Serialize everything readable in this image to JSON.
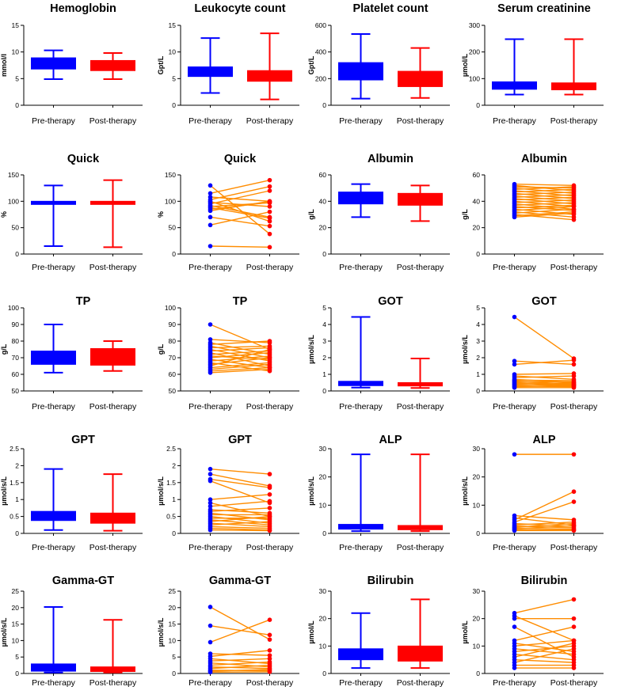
{
  "colors": {
    "pre": "#0000ff",
    "post": "#ff0000",
    "line": "#ff8c00",
    "axis": "#000000"
  },
  "chart_data": [
    {
      "type": "box",
      "title": "Hemoglobin",
      "ylabel": "mmol/l",
      "ylim": [
        0,
        15
      ],
      "yticks": [
        0,
        5,
        10,
        15
      ],
      "categories": [
        "Pre-therapy",
        "Post-therapy"
      ],
      "boxes": [
        {
          "min": 4.9,
          "q1": 6.8,
          "median": 7.8,
          "q3": 8.9,
          "max": 10.3
        },
        {
          "min": 4.9,
          "q1": 6.5,
          "median": 7.5,
          "q3": 8.4,
          "max": 9.8
        }
      ]
    },
    {
      "type": "box",
      "title": "Leukocyte count",
      "ylabel": "Gpt/L",
      "ylim": [
        0,
        15
      ],
      "yticks": [
        0,
        5,
        10,
        15
      ],
      "categories": [
        "Pre-therapy",
        "Post-therapy"
      ],
      "boxes": [
        {
          "min": 2.3,
          "q1": 5.4,
          "median": 6.3,
          "q3": 7.2,
          "max": 12.6
        },
        {
          "min": 1.1,
          "q1": 4.5,
          "median": 5.5,
          "q3": 6.5,
          "max": 13.5
        }
      ]
    },
    {
      "type": "box",
      "title": "Platelet count",
      "ylabel": "Gpt/L",
      "ylim": [
        0,
        600
      ],
      "yticks": [
        0,
        200,
        400,
        600
      ],
      "categories": [
        "Pre-therapy",
        "Post-therapy"
      ],
      "boxes": [
        {
          "min": 50,
          "q1": 190,
          "median": 245,
          "q3": 320,
          "max": 535
        },
        {
          "min": 55,
          "q1": 140,
          "median": 195,
          "q3": 255,
          "max": 430
        }
      ]
    },
    {
      "type": "box",
      "title": "Serum creatinine",
      "ylabel": "µmol/L",
      "ylim": [
        0,
        300
      ],
      "yticks": [
        0,
        100,
        200,
        300
      ],
      "categories": [
        "Pre-therapy",
        "Post-therapy"
      ],
      "boxes": [
        {
          "min": 40,
          "q1": 60,
          "median": 70,
          "q3": 88,
          "max": 248
        },
        {
          "min": 40,
          "q1": 58,
          "median": 68,
          "q3": 84,
          "max": 248
        }
      ]
    },
    {
      "type": "box",
      "title": "Quick",
      "ylabel": "%",
      "ylim": [
        0,
        150
      ],
      "yticks": [
        0,
        50,
        100,
        150
      ],
      "categories": [
        "Pre-therapy",
        "Post-therapy"
      ],
      "boxes": [
        {
          "min": 15,
          "q1": 94,
          "median": 97,
          "q3": 100,
          "max": 130
        },
        {
          "min": 13,
          "q1": 94,
          "median": 97,
          "q3": 100,
          "max": 140
        }
      ]
    },
    {
      "type": "paired",
      "title": "Quick",
      "ylabel": "%",
      "ylim": [
        0,
        150
      ],
      "yticks": [
        0,
        50,
        100,
        150
      ],
      "categories": [
        "Pre-therapy",
        "Post-therapy"
      ],
      "pairs": [
        [
          130,
          38
        ],
        [
          115,
          140
        ],
        [
          108,
          100
        ],
        [
          103,
          128
        ],
        [
          100,
          62
        ],
        [
          98,
          90
        ],
        [
          95,
          120
        ],
        [
          92,
          70
        ],
        [
          90,
          97
        ],
        [
          88,
          68
        ],
        [
          85,
          98
        ],
        [
          82,
          100
        ],
        [
          70,
          53
        ],
        [
          55,
          80
        ],
        [
          15,
          13
        ]
      ]
    },
    {
      "type": "box",
      "title": "Albumin",
      "ylabel": "g/L",
      "ylim": [
        0,
        60
      ],
      "yticks": [
        0,
        20,
        40,
        60
      ],
      "categories": [
        "Pre-therapy",
        "Post-therapy"
      ],
      "boxes": [
        {
          "min": 28,
          "q1": 38,
          "median": 43,
          "q3": 47,
          "max": 53
        },
        {
          "min": 25,
          "q1": 37,
          "median": 41,
          "q3": 46,
          "max": 52
        }
      ]
    },
    {
      "type": "paired",
      "title": "Albumin",
      "ylabel": "g/L",
      "ylim": [
        0,
        60
      ],
      "yticks": [
        0,
        20,
        40,
        60
      ],
      "categories": [
        "Pre-therapy",
        "Post-therapy"
      ],
      "pairs": [
        [
          53,
          52
        ],
        [
          52,
          48
        ],
        [
          51,
          50
        ],
        [
          50,
          46
        ],
        [
          49,
          51
        ],
        [
          48,
          44
        ],
        [
          47,
          49
        ],
        [
          46,
          42
        ],
        [
          45,
          47
        ],
        [
          44,
          40
        ],
        [
          43,
          45
        ],
        [
          42,
          38
        ],
        [
          41,
          43
        ],
        [
          40,
          36
        ],
        [
          39,
          41
        ],
        [
          38,
          34
        ],
        [
          37,
          39
        ],
        [
          36,
          33
        ],
        [
          35,
          37
        ],
        [
          34,
          30
        ],
        [
          33,
          36
        ],
        [
          32,
          28
        ],
        [
          31,
          34
        ],
        [
          30,
          26
        ],
        [
          29,
          32
        ],
        [
          28,
          31
        ]
      ]
    },
    {
      "type": "box",
      "title": "TP",
      "ylabel": "g/L",
      "ylim": [
        50,
        100
      ],
      "yticks": [
        50,
        60,
        70,
        80,
        90,
        100
      ],
      "categories": [
        "Pre-therapy",
        "Post-therapy"
      ],
      "boxes": [
        {
          "min": 61,
          "q1": 66,
          "median": 70,
          "q3": 74,
          "max": 90
        },
        {
          "min": 62,
          "q1": 65.5,
          "median": 70,
          "q3": 75.5,
          "max": 80
        }
      ]
    },
    {
      "type": "paired",
      "title": "TP",
      "ylabel": "g/L",
      "ylim": [
        50,
        100
      ],
      "yticks": [
        50,
        60,
        70,
        80,
        90,
        100
      ],
      "categories": [
        "Pre-therapy",
        "Post-therapy"
      ],
      "pairs": [
        [
          90,
          75
        ],
        [
          81,
          79
        ],
        [
          79,
          72
        ],
        [
          78,
          80
        ],
        [
          77,
          70
        ],
        [
          76,
          77
        ],
        [
          75,
          68
        ],
        [
          74,
          76
        ],
        [
          73,
          65
        ],
        [
          72,
          74
        ],
        [
          71,
          69
        ],
        [
          70,
          73
        ],
        [
          69,
          64
        ],
        [
          68,
          71
        ],
        [
          67,
          62
        ],
        [
          66,
          70
        ],
        [
          65,
          75
        ],
        [
          64,
          67
        ],
        [
          63,
          66
        ],
        [
          62,
          64
        ],
        [
          61,
          63
        ]
      ]
    },
    {
      "type": "box",
      "title": "GOT",
      "ylabel": "µmol/s/L",
      "ylim": [
        0,
        5
      ],
      "yticks": [
        0,
        1,
        2,
        3,
        4,
        5
      ],
      "categories": [
        "Pre-therapy",
        "Post-therapy"
      ],
      "boxes": [
        {
          "min": 0.2,
          "q1": 0.32,
          "median": 0.42,
          "q3": 0.58,
          "max": 4.45
        },
        {
          "min": 0.18,
          "q1": 0.3,
          "median": 0.38,
          "q3": 0.5,
          "max": 1.95
        }
      ]
    },
    {
      "type": "paired",
      "title": "GOT",
      "ylabel": "µmol/s/L",
      "ylim": [
        0,
        5
      ],
      "yticks": [
        0,
        1,
        2,
        3,
        4,
        5
      ],
      "categories": [
        "Pre-therapy",
        "Post-therapy"
      ],
      "pairs": [
        [
          4.45,
          1.95
        ],
        [
          1.8,
          1.6
        ],
        [
          1.6,
          1.85
        ],
        [
          1.0,
          1.05
        ],
        [
          0.9,
          0.7
        ],
        [
          0.8,
          0.9
        ],
        [
          0.7,
          0.5
        ],
        [
          0.65,
          0.62
        ],
        [
          0.6,
          0.4
        ],
        [
          0.55,
          0.55
        ],
        [
          0.5,
          0.35
        ],
        [
          0.45,
          0.48
        ],
        [
          0.4,
          0.3
        ],
        [
          0.35,
          0.42
        ],
        [
          0.3,
          0.25
        ],
        [
          0.25,
          0.33
        ],
        [
          0.2,
          0.2
        ]
      ]
    },
    {
      "type": "box",
      "title": "GPT",
      "ylabel": "µmol/s/L",
      "ylim": [
        0,
        2.5
      ],
      "yticks": [
        0.0,
        0.5,
        1.0,
        1.5,
        2.0,
        2.5
      ],
      "categories": [
        "Pre-therapy",
        "Post-therapy"
      ],
      "boxes": [
        {
          "min": 0.1,
          "q1": 0.38,
          "median": 0.5,
          "q3": 0.65,
          "max": 1.9
        },
        {
          "min": 0.08,
          "q1": 0.3,
          "median": 0.45,
          "q3": 0.6,
          "max": 1.75
        }
      ]
    },
    {
      "type": "paired",
      "title": "GPT",
      "ylabel": "µmol/s/L",
      "ylim": [
        0,
        2.5
      ],
      "yticks": [
        0.0,
        0.5,
        1.0,
        1.5,
        2.0,
        2.5
      ],
      "categories": [
        "Pre-therapy",
        "Post-therapy"
      ],
      "pairs": [
        [
          1.9,
          1.75
        ],
        [
          1.75,
          1.4
        ],
        [
          1.6,
          1.35
        ],
        [
          1.55,
          0.9
        ],
        [
          1.0,
          1.15
        ],
        [
          0.9,
          0.5
        ],
        [
          0.8,
          0.95
        ],
        [
          0.7,
          0.6
        ],
        [
          0.65,
          0.75
        ],
        [
          0.6,
          0.4
        ],
        [
          0.55,
          0.55
        ],
        [
          0.5,
          0.3
        ],
        [
          0.45,
          0.45
        ],
        [
          0.4,
          0.25
        ],
        [
          0.35,
          0.5
        ],
        [
          0.3,
          0.2
        ],
        [
          0.25,
          0.35
        ],
        [
          0.2,
          0.15
        ],
        [
          0.15,
          0.1
        ],
        [
          0.1,
          0.08
        ]
      ]
    },
    {
      "type": "box",
      "title": "ALP",
      "ylabel": "µmol/s/L",
      "ylim": [
        0,
        30
      ],
      "yticks": [
        0,
        10,
        20,
        30
      ],
      "categories": [
        "Pre-therapy",
        "Post-therapy"
      ],
      "boxes": [
        {
          "min": 0.8,
          "q1": 1.5,
          "median": 2.2,
          "q3": 3.2,
          "max": 28
        },
        {
          "min": 0.8,
          "q1": 1.3,
          "median": 1.9,
          "q3": 2.8,
          "max": 28
        }
      ]
    },
    {
      "type": "paired",
      "title": "ALP",
      "ylabel": "µmol/s/L",
      "ylim": [
        0,
        30
      ],
      "yticks": [
        0,
        10,
        20,
        30
      ],
      "categories": [
        "Pre-therapy",
        "Post-therapy"
      ],
      "pairs": [
        [
          28,
          28
        ],
        [
          6.3,
          4.8
        ],
        [
          5.5,
          3.0
        ],
        [
          4.8,
          14.8
        ],
        [
          4.0,
          11.2
        ],
        [
          3.5,
          2.5
        ],
        [
          3.0,
          4.0
        ],
        [
          2.6,
          2.0
        ],
        [
          2.2,
          3.5
        ],
        [
          1.9,
          1.5
        ],
        [
          1.6,
          2.8
        ],
        [
          1.3,
          1.2
        ],
        [
          1.0,
          1.0
        ]
      ]
    },
    {
      "type": "box",
      "title": "Gamma-GT",
      "ylabel": "µmol/s/L",
      "ylim": [
        0,
        25
      ],
      "yticks": [
        0,
        5,
        10,
        15,
        20,
        25
      ],
      "categories": [
        "Pre-therapy",
        "Post-therapy"
      ],
      "boxes": [
        {
          "min": 0.3,
          "q1": 0.7,
          "median": 1.5,
          "q3": 2.9,
          "max": 20.2
        },
        {
          "min": 0.3,
          "q1": 0.6,
          "median": 1.2,
          "q3": 2.0,
          "max": 16.3
        }
      ]
    },
    {
      "type": "paired",
      "title": "Gamma-GT",
      "ylabel": "µmol/s/L",
      "ylim": [
        0,
        25
      ],
      "yticks": [
        0,
        5,
        10,
        15,
        20,
        25
      ],
      "categories": [
        "Pre-therapy",
        "Post-therapy"
      ],
      "pairs": [
        [
          20.2,
          10.3
        ],
        [
          14.5,
          11.7
        ],
        [
          9.5,
          16.3
        ],
        [
          6.0,
          5.5
        ],
        [
          5.2,
          7.0
        ],
        [
          4.5,
          3.0
        ],
        [
          3.8,
          4.5
        ],
        [
          3.2,
          2.0
        ],
        [
          2.5,
          3.5
        ],
        [
          2.0,
          1.5
        ],
        [
          1.5,
          2.5
        ],
        [
          1.0,
          0.8
        ],
        [
          0.7,
          1.2
        ],
        [
          0.4,
          0.5
        ]
      ]
    },
    {
      "type": "box",
      "title": "Bilirubin",
      "ylabel": "µmol/L",
      "ylim": [
        0,
        30
      ],
      "yticks": [
        0,
        10,
        20,
        30
      ],
      "categories": [
        "Pre-therapy",
        "Post-therapy"
      ],
      "boxes": [
        {
          "min": 2,
          "q1": 5,
          "median": 7,
          "q3": 9,
          "max": 22
        },
        {
          "min": 2,
          "q1": 4.5,
          "median": 7,
          "q3": 10,
          "max": 27
        }
      ]
    },
    {
      "type": "paired",
      "title": "Bilirubin",
      "ylabel": "µmol/L",
      "ylim": [
        0,
        30
      ],
      "yticks": [
        0,
        10,
        20,
        30
      ],
      "categories": [
        "Pre-therapy",
        "Post-therapy"
      ],
      "pairs": [
        [
          22,
          27
        ],
        [
          21,
          12
        ],
        [
          20,
          20
        ],
        [
          17,
          6
        ],
        [
          12,
          17
        ],
        [
          11,
          8
        ],
        [
          10,
          12
        ],
        [
          9,
          7
        ],
        [
          8,
          10
        ],
        [
          7,
          5
        ],
        [
          6,
          11
        ],
        [
          5,
          4
        ],
        [
          4,
          9
        ],
        [
          3,
          3
        ],
        [
          2,
          2
        ]
      ]
    }
  ]
}
